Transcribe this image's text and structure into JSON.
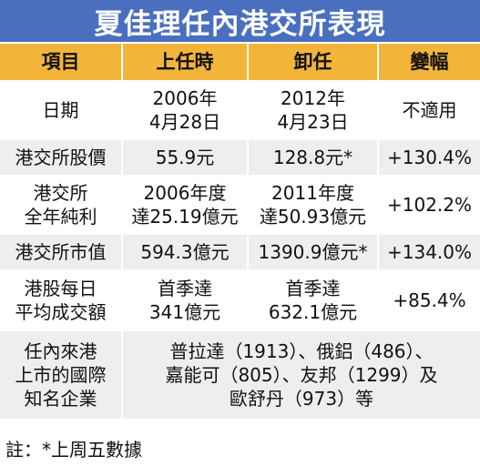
{
  "title": "夏佳理任內港交所表現",
  "headers": [
    "項目",
    "上任時",
    "卸任",
    "變幅"
  ],
  "rows": [
    {
      "item": [
        "日期"
      ],
      "start": [
        "2006年",
        "4月28日"
      ],
      "end": [
        "2012年",
        "4月23日"
      ],
      "change": [
        "不適用"
      ]
    },
    {
      "item": [
        "港交所股價"
      ],
      "start": [
        "55.9元"
      ],
      "end": [
        "128.8元*"
      ],
      "change": [
        "+130.4%"
      ]
    },
    {
      "item": [
        "港交所",
        "全年純利"
      ],
      "start": [
        "2006年度",
        "達25.19億元"
      ],
      "end": [
        "2011年度",
        "達50.93億元"
      ],
      "change": [
        "+102.2%"
      ]
    },
    {
      "item": [
        "港交所市值"
      ],
      "start": [
        "594.3億元"
      ],
      "end": [
        "1390.9億元*"
      ],
      "change": [
        "+134.0%"
      ]
    },
    {
      "item": [
        "港股每日",
        "平均成交額"
      ],
      "start": [
        "首季達",
        "341億元"
      ],
      "end": [
        "首季達",
        "632.1億元"
      ],
      "change": [
        "+85.4%"
      ]
    }
  ],
  "listing": {
    "item": [
      "任內來港",
      "上市的國際",
      "知名企業"
    ],
    "lines": [
      "普拉達（1913）、俄鋁（486）、",
      "嘉能可（805）、友邦（1299）及",
      "歐舒丹（973）等"
    ]
  },
  "note": "註：*上周五數據"
}
